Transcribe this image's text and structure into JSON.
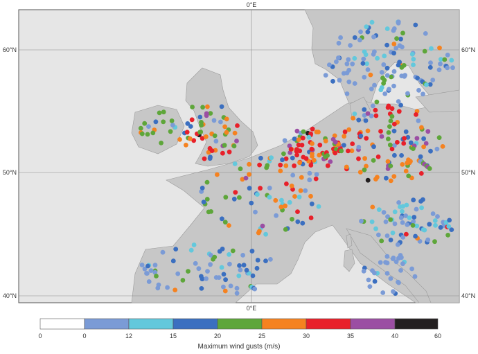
{
  "map": {
    "lon_ticks": [
      "0°E",
      "0°E"
    ],
    "lat_ticks_left": [
      "60°N",
      "50°N",
      "40°N"
    ],
    "lat_ticks_right": [
      "60°N",
      "50°N",
      "40°N"
    ]
  },
  "legend": {
    "title": "Maximum wind gusts (m/s)",
    "tick_labels": [
      "0",
      "0",
      "12",
      "15",
      "20",
      "25",
      "30",
      "35",
      "40",
      "60"
    ],
    "bins": [
      {
        "from": 0,
        "to": 0,
        "color": "#ffffff"
      },
      {
        "from": 0,
        "to": 12,
        "color": "#7b9bd6"
      },
      {
        "from": 12,
        "to": 15,
        "color": "#63c8dc"
      },
      {
        "from": 15,
        "to": 20,
        "color": "#3b6fc0"
      },
      {
        "from": 20,
        "to": 25,
        "color": "#5ea63a"
      },
      {
        "from": 25,
        "to": 30,
        "color": "#f58220"
      },
      {
        "from": 30,
        "to": 35,
        "color": "#e8202a"
      },
      {
        "from": 35,
        "to": 40,
        "color": "#9b4ea3"
      },
      {
        "from": 40,
        "to": 60,
        "color": "#231f20"
      }
    ]
  },
  "colors": {
    "sea": "#e6e6e6",
    "land": "#c7c7c7",
    "border": "#9a9a9a",
    "graticule": "#8a8a8a"
  }
}
